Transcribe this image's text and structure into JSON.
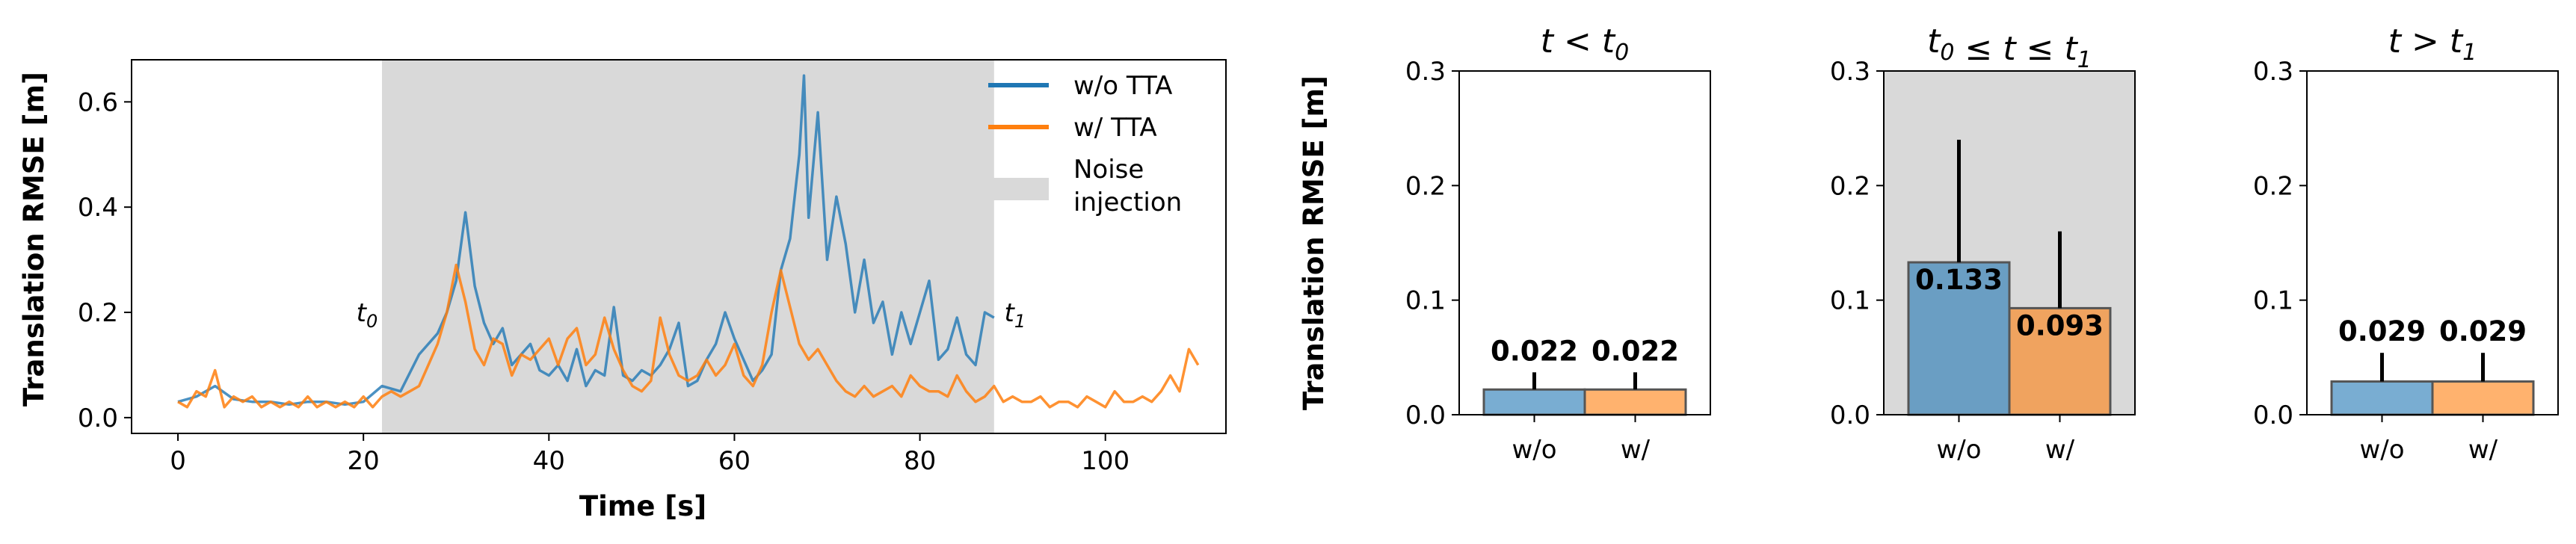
{
  "colors": {
    "wo": "#1f77b4",
    "w": "#ff7f0e",
    "shade": "#d9d9d9"
  },
  "chart_data": [
    {
      "type": "line",
      "title": "",
      "xlabel": "Time [s]",
      "ylabel": "Translation RMSE [m]",
      "xlim": [
        -5,
        113
      ],
      "ylim": [
        -0.03,
        0.68
      ],
      "xticks": [
        "0",
        "20",
        "40",
        "60",
        "80",
        "100"
      ],
      "yticks": [
        "0.0",
        "0.2",
        "0.4",
        "0.6"
      ],
      "grid": false,
      "legend_position": "top-right",
      "shaded_region": {
        "label": "Noise injection",
        "x0": 22,
        "x1": 88
      },
      "markers": [
        {
          "label_base": "t",
          "label_sub": "0",
          "x": 22,
          "y": 0.2
        },
        {
          "label_base": "t",
          "label_sub": "1",
          "x": 88,
          "y": 0.2
        }
      ],
      "series": [
        {
          "name": "w/o TTA",
          "points": [
            [
              0,
              0.03
            ],
            [
              2,
              0.04
            ],
            [
              4,
              0.06
            ],
            [
              6,
              0.035
            ],
            [
              8,
              0.03
            ],
            [
              10,
              0.03
            ],
            [
              12,
              0.025
            ],
            [
              14,
              0.03
            ],
            [
              16,
              0.03
            ],
            [
              18,
              0.025
            ],
            [
              20,
              0.03
            ],
            [
              22,
              0.06
            ],
            [
              24,
              0.05
            ],
            [
              26,
              0.12
            ],
            [
              28,
              0.16
            ],
            [
              29,
              0.2
            ],
            [
              30,
              0.26
            ],
            [
              31,
              0.39
            ],
            [
              32,
              0.25
            ],
            [
              33,
              0.18
            ],
            [
              34,
              0.14
            ],
            [
              35,
              0.17
            ],
            [
              36,
              0.1
            ],
            [
              37,
              0.12
            ],
            [
              38,
              0.14
            ],
            [
              39,
              0.09
            ],
            [
              40,
              0.08
            ],
            [
              41,
              0.1
            ],
            [
              42,
              0.07
            ],
            [
              43,
              0.13
            ],
            [
              44,
              0.06
            ],
            [
              45,
              0.09
            ],
            [
              46,
              0.08
            ],
            [
              47,
              0.21
            ],
            [
              48,
              0.08
            ],
            [
              49,
              0.07
            ],
            [
              50,
              0.09
            ],
            [
              51,
              0.08
            ],
            [
              52,
              0.1
            ],
            [
              53,
              0.13
            ],
            [
              54,
              0.18
            ],
            [
              55,
              0.06
            ],
            [
              56,
              0.07
            ],
            [
              57,
              0.11
            ],
            [
              58,
              0.14
            ],
            [
              59,
              0.2
            ],
            [
              60,
              0.15
            ],
            [
              61,
              0.11
            ],
            [
              62,
              0.07
            ],
            [
              63,
              0.09
            ],
            [
              64,
              0.12
            ],
            [
              65,
              0.28
            ],
            [
              66,
              0.34
            ],
            [
              67,
              0.5
            ],
            [
              67.5,
              0.65
            ],
            [
              68,
              0.38
            ],
            [
              69,
              0.58
            ],
            [
              70,
              0.3
            ],
            [
              71,
              0.42
            ],
            [
              72,
              0.33
            ],
            [
              73,
              0.2
            ],
            [
              74,
              0.3
            ],
            [
              75,
              0.18
            ],
            [
              76,
              0.22
            ],
            [
              77,
              0.12
            ],
            [
              78,
              0.2
            ],
            [
              79,
              0.14
            ],
            [
              80,
              0.2
            ],
            [
              81,
              0.26
            ],
            [
              82,
              0.11
            ],
            [
              83,
              0.13
            ],
            [
              84,
              0.19
            ],
            [
              85,
              0.12
            ],
            [
              86,
              0.1
            ],
            [
              87,
              0.2
            ],
            [
              88,
              0.19
            ]
          ]
        },
        {
          "name": "w/ TTA",
          "points": [
            [
              0,
              0.03
            ],
            [
              1,
              0.02
            ],
            [
              2,
              0.05
            ],
            [
              3,
              0.04
            ],
            [
              4,
              0.09
            ],
            [
              5,
              0.02
            ],
            [
              6,
              0.04
            ],
            [
              7,
              0.03
            ],
            [
              8,
              0.04
            ],
            [
              9,
              0.02
            ],
            [
              10,
              0.03
            ],
            [
              11,
              0.02
            ],
            [
              12,
              0.03
            ],
            [
              13,
              0.02
            ],
            [
              14,
              0.04
            ],
            [
              15,
              0.02
            ],
            [
              16,
              0.03
            ],
            [
              17,
              0.02
            ],
            [
              18,
              0.03
            ],
            [
              19,
              0.02
            ],
            [
              20,
              0.04
            ],
            [
              21,
              0.02
            ],
            [
              22,
              0.04
            ],
            [
              23,
              0.05
            ],
            [
              24,
              0.04
            ],
            [
              25,
              0.05
            ],
            [
              26,
              0.06
            ],
            [
              27,
              0.1
            ],
            [
              28,
              0.14
            ],
            [
              29,
              0.2
            ],
            [
              30,
              0.29
            ],
            [
              31,
              0.22
            ],
            [
              32,
              0.13
            ],
            [
              33,
              0.1
            ],
            [
              34,
              0.15
            ],
            [
              35,
              0.14
            ],
            [
              36,
              0.08
            ],
            [
              37,
              0.12
            ],
            [
              38,
              0.11
            ],
            [
              39,
              0.13
            ],
            [
              40,
              0.15
            ],
            [
              41,
              0.1
            ],
            [
              42,
              0.15
            ],
            [
              43,
              0.17
            ],
            [
              44,
              0.1
            ],
            [
              45,
              0.12
            ],
            [
              46,
              0.19
            ],
            [
              47,
              0.13
            ],
            [
              48,
              0.09
            ],
            [
              49,
              0.06
            ],
            [
              50,
              0.05
            ],
            [
              51,
              0.07
            ],
            [
              52,
              0.19
            ],
            [
              53,
              0.12
            ],
            [
              54,
              0.08
            ],
            [
              55,
              0.07
            ],
            [
              56,
              0.08
            ],
            [
              57,
              0.11
            ],
            [
              58,
              0.08
            ],
            [
              59,
              0.1
            ],
            [
              60,
              0.14
            ],
            [
              61,
              0.08
            ],
            [
              62,
              0.06
            ],
            [
              63,
              0.1
            ],
            [
              64,
              0.2
            ],
            [
              65,
              0.28
            ],
            [
              66,
              0.21
            ],
            [
              67,
              0.14
            ],
            [
              68,
              0.11
            ],
            [
              69,
              0.13
            ],
            [
              70,
              0.1
            ],
            [
              71,
              0.07
            ],
            [
              72,
              0.05
            ],
            [
              73,
              0.04
            ],
            [
              74,
              0.06
            ],
            [
              75,
              0.04
            ],
            [
              76,
              0.05
            ],
            [
              77,
              0.06
            ],
            [
              78,
              0.04
            ],
            [
              79,
              0.08
            ],
            [
              80,
              0.06
            ],
            [
              81,
              0.05
            ],
            [
              82,
              0.05
            ],
            [
              83,
              0.04
            ],
            [
              84,
              0.08
            ],
            [
              85,
              0.05
            ],
            [
              86,
              0.03
            ],
            [
              87,
              0.04
            ],
            [
              88,
              0.06
            ],
            [
              89,
              0.03
            ],
            [
              90,
              0.04
            ],
            [
              91,
              0.03
            ],
            [
              92,
              0.03
            ],
            [
              93,
              0.04
            ],
            [
              94,
              0.02
            ],
            [
              95,
              0.03
            ],
            [
              96,
              0.03
            ],
            [
              97,
              0.02
            ],
            [
              98,
              0.04
            ],
            [
              99,
              0.03
            ],
            [
              100,
              0.02
            ],
            [
              101,
              0.05
            ],
            [
              102,
              0.03
            ],
            [
              103,
              0.03
            ],
            [
              104,
              0.04
            ],
            [
              105,
              0.03
            ],
            [
              106,
              0.05
            ],
            [
              107,
              0.08
            ],
            [
              108,
              0.05
            ],
            [
              109,
              0.13
            ],
            [
              110,
              0.1
            ]
          ]
        }
      ]
    },
    {
      "type": "bar",
      "title_parts": [
        "t",
        " < ",
        "t",
        "0"
      ],
      "ylabel": "Translation RMSE [m]",
      "categories": [
        "w/o",
        "w/"
      ],
      "values": [
        0.022,
        0.022
      ],
      "errors": [
        0.015,
        0.015
      ],
      "value_labels": [
        "0.022",
        "0.022"
      ],
      "ylim": [
        0,
        0.3
      ],
      "yticks": [
        "0.0",
        "0.1",
        "0.2",
        "0.3"
      ],
      "shaded": false
    },
    {
      "type": "bar",
      "title_parts": [
        "t",
        "0",
        " ≤ ",
        "t",
        " ≤ ",
        "t",
        "1"
      ],
      "ylabel": "",
      "categories": [
        "w/o",
        "w/"
      ],
      "values": [
        0.133,
        0.093
      ],
      "errors": [
        0.107,
        0.067
      ],
      "value_labels": [
        "0.133",
        "0.093"
      ],
      "ylim": [
        0,
        0.3
      ],
      "yticks": [
        "0.0",
        "0.1",
        "0.2",
        "0.3"
      ],
      "shaded": true
    },
    {
      "type": "bar",
      "title_parts": [
        "t",
        " > ",
        "t",
        "1"
      ],
      "ylabel": "",
      "categories": [
        "w/o",
        "w/"
      ],
      "values": [
        0.029,
        0.029
      ],
      "errors": [
        0.025,
        0.025
      ],
      "value_labels": [
        "0.029",
        "0.029"
      ],
      "ylim": [
        0,
        0.3
      ],
      "yticks": [
        "0.0",
        "0.1",
        "0.2",
        "0.3"
      ],
      "shaded": false
    }
  ]
}
